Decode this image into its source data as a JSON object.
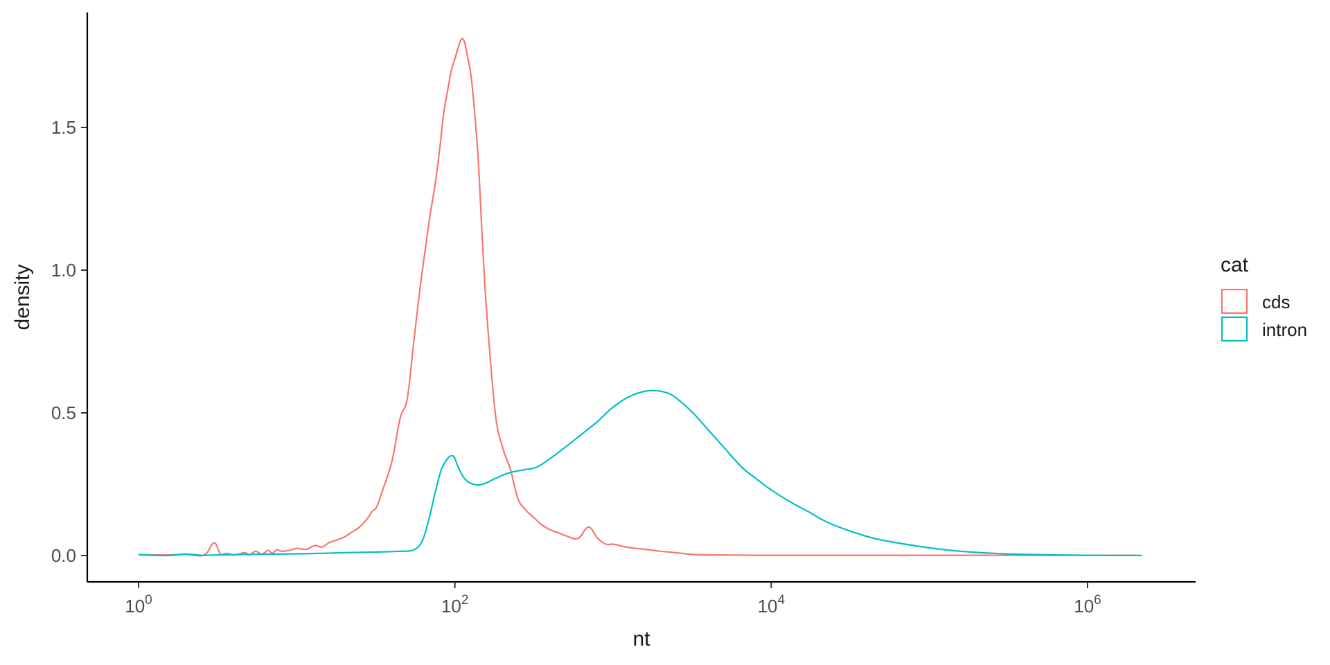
{
  "chart_data": {
    "type": "line",
    "subtype": "density",
    "title": "",
    "xlabel": "nt",
    "ylabel": "density",
    "x_scale": "log10",
    "xlim": [
      0.6,
      8000000
    ],
    "ylim": [
      -0.09,
      1.9
    ],
    "grid": false,
    "x_ticks": [
      {
        "value": 1,
        "base": "10",
        "exp": "0"
      },
      {
        "value": 100,
        "base": "10",
        "exp": "2"
      },
      {
        "value": 10000,
        "base": "10",
        "exp": "4"
      },
      {
        "value": 1000000,
        "base": "10",
        "exp": "6"
      }
    ],
    "y_ticks": [
      {
        "value": 0.0,
        "label": "0.0"
      },
      {
        "value": 0.5,
        "label": "0.5"
      },
      {
        "value": 1.0,
        "label": "1.0"
      },
      {
        "value": 1.5,
        "label": "1.5"
      }
    ],
    "legend": {
      "title": "cat",
      "position": "right",
      "entries": [
        {
          "label": "cds",
          "color": "#F8766D"
        },
        {
          "label": "intron",
          "color": "#00BFC4"
        }
      ]
    },
    "series": [
      {
        "name": "cds",
        "color": "#F8766D",
        "x": [
          1,
          1.5,
          2,
          2.6,
          3,
          3.3,
          3.6,
          4,
          4.7,
          5,
          5.5,
          6,
          6.6,
          7,
          7.5,
          8,
          9,
          10,
          11.5,
          13,
          14.5,
          16,
          18,
          20,
          22,
          25,
          28,
          30,
          32,
          35,
          40,
          45,
          50,
          55,
          60,
          66,
          70,
          75,
          80,
          85,
          90,
          95,
          100,
          105,
          110,
          115,
          120,
          125,
          130,
          140,
          150,
          160,
          180,
          200,
          225,
          250,
          280,
          320,
          350,
          400,
          450,
          500,
          600,
          700,
          800,
          900,
          1000,
          1100,
          1200,
          1400,
          1700,
          2000,
          2300,
          2700,
          3000,
          3500,
          5000,
          8000,
          20000,
          100000,
          500000,
          2000000
        ],
        "y": [
          0.003,
          0.002,
          0.004,
          0.002,
          0.045,
          0.005,
          0.008,
          0.002,
          0.01,
          0.002,
          0.015,
          0.005,
          0.018,
          0.008,
          0.02,
          0.015,
          0.018,
          0.025,
          0.022,
          0.035,
          0.03,
          0.045,
          0.055,
          0.065,
          0.08,
          0.1,
          0.13,
          0.155,
          0.17,
          0.23,
          0.33,
          0.48,
          0.55,
          0.75,
          0.93,
          1.1,
          1.2,
          1.3,
          1.42,
          1.55,
          1.63,
          1.7,
          1.74,
          1.78,
          1.81,
          1.8,
          1.75,
          1.7,
          1.62,
          1.4,
          1.08,
          0.83,
          0.5,
          0.38,
          0.3,
          0.2,
          0.16,
          0.13,
          0.11,
          0.09,
          0.08,
          0.07,
          0.06,
          0.1,
          0.06,
          0.04,
          0.04,
          0.035,
          0.03,
          0.025,
          0.02,
          0.015,
          0.012,
          0.008,
          0.005,
          0.003,
          0.002,
          0.001,
          0.001,
          0.001,
          0.001,
          0.001
        ]
      },
      {
        "name": "intron",
        "color": "#00BFC4",
        "x": [
          1,
          1.5,
          2,
          2.5,
          3,
          4,
          5,
          7,
          10,
          15,
          20,
          30,
          45,
          55,
          62,
          68,
          75,
          82,
          90,
          96,
          100,
          105,
          115,
          130,
          150,
          180,
          220,
          270,
          330,
          400,
          500,
          650,
          800,
          1000,
          1300,
          1700,
          2200,
          2600,
          3200,
          4000,
          5000,
          6500,
          8000,
          10000,
          13000,
          17000,
          22000,
          30000,
          45000,
          70000,
          100000,
          150000,
          250000,
          400000,
          700000,
          1000000,
          1500000,
          2200000
        ],
        "y": [
          0.003,
          0.0,
          0.005,
          0.001,
          0.002,
          0.003,
          0.004,
          0.005,
          0.006,
          0.008,
          0.01,
          0.012,
          0.015,
          0.02,
          0.05,
          0.12,
          0.22,
          0.3,
          0.34,
          0.35,
          0.34,
          0.31,
          0.27,
          0.25,
          0.25,
          0.27,
          0.29,
          0.3,
          0.31,
          0.34,
          0.38,
          0.43,
          0.47,
          0.52,
          0.56,
          0.578,
          0.57,
          0.545,
          0.5,
          0.44,
          0.38,
          0.31,
          0.27,
          0.23,
          0.19,
          0.155,
          0.12,
          0.09,
          0.06,
          0.04,
          0.027,
          0.016,
          0.008,
          0.004,
          0.002,
          0.001,
          0.0005,
          0.0003
        ]
      }
    ]
  }
}
